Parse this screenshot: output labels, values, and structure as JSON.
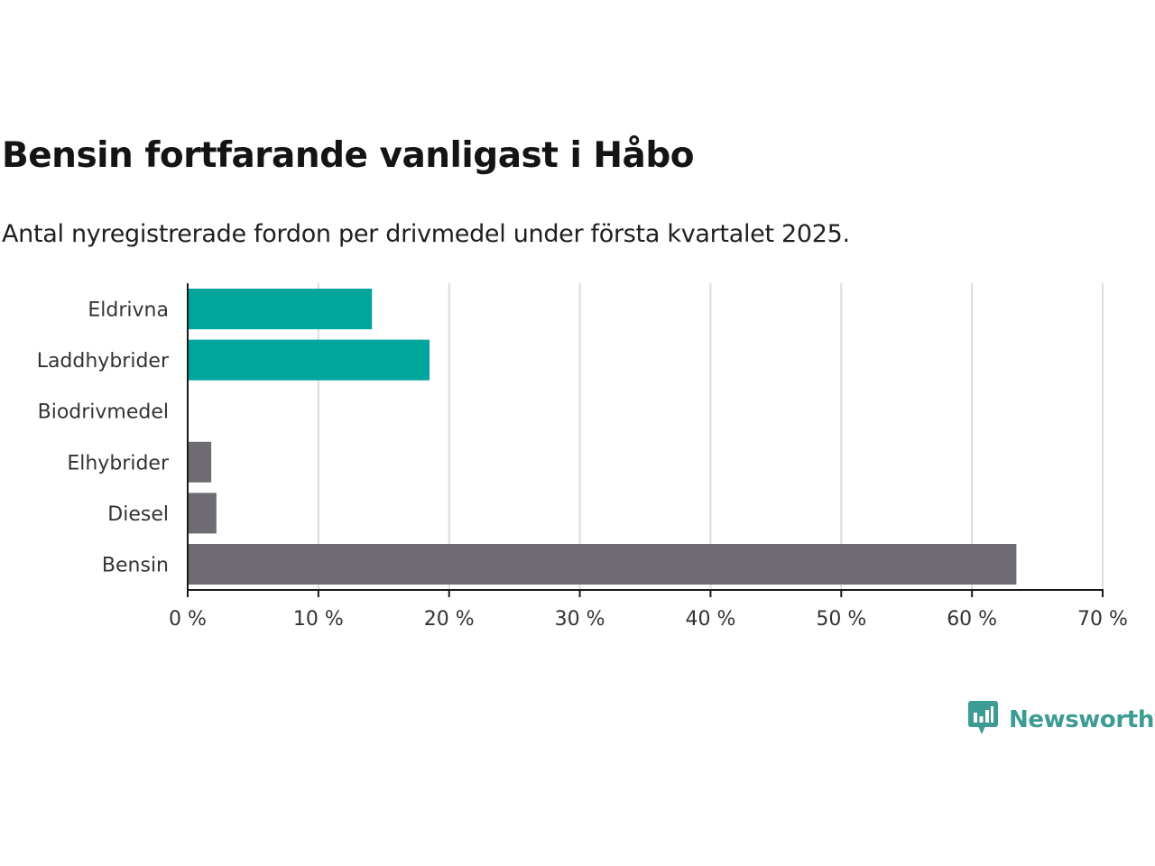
{
  "brand": {
    "name": "Newsworthy",
    "color": "#3c9c94"
  },
  "chart_data": {
    "type": "bar",
    "orientation": "horizontal",
    "title": "Bensin fortfarande vanligast i Håbo",
    "subtitle": "Antal nyregistrerade fordon per drivmedel under första kvartalet 2025.",
    "xlabel": "",
    "ylabel": "",
    "categories": [
      "Eldrivna",
      "Laddhybrider",
      "Biodrivmedel",
      "Elhybrider",
      "Diesel",
      "Bensin"
    ],
    "values": [
      14.1,
      18.5,
      0,
      1.8,
      2.2,
      63.4
    ],
    "unit": "%",
    "colors": [
      "#00a59c",
      "#00a59c",
      "#00a59c",
      "#6e6c72",
      "#6e6c72",
      "#6e6c72"
    ],
    "xlim": [
      0,
      70
    ],
    "xticks": [
      0,
      10,
      20,
      30,
      40,
      50,
      60,
      70
    ],
    "xtick_labels": [
      "0 %",
      "10 %",
      "20 %",
      "30 %",
      "40 %",
      "50 %",
      "60 %",
      "70 %"
    ],
    "grid": true,
    "legend": "none"
  }
}
